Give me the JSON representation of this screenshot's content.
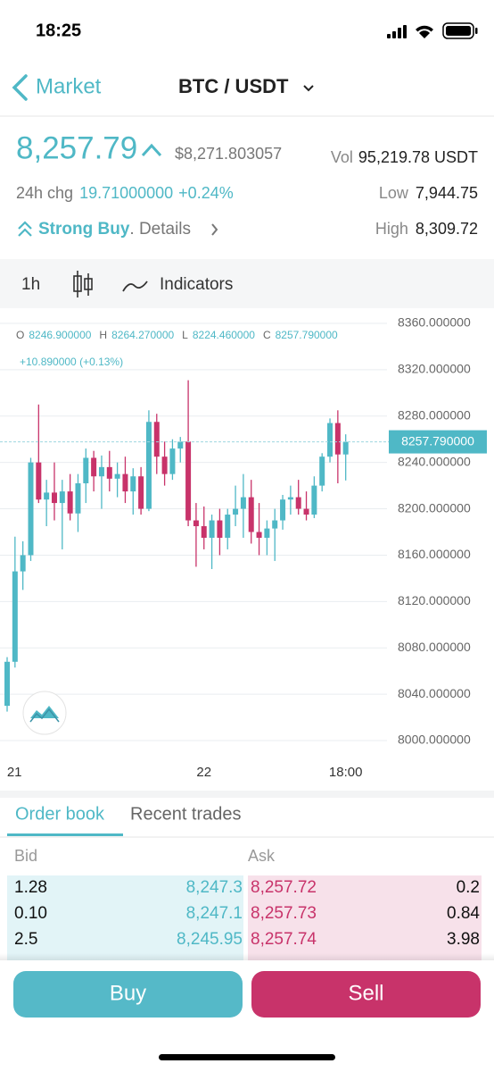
{
  "status_bar": {
    "time": "18:25"
  },
  "header": {
    "back": "Market",
    "pair": "BTC / USDT"
  },
  "ticker": {
    "price": "8,257.79",
    "fiat_price": "$8,271.803057",
    "vol_label": "Vol",
    "vol": "95,219.78 USDT",
    "chg_label": "24h chg",
    "chg": "19.71000000",
    "chg_pct": "+0.24%",
    "low_label": "Low",
    "low": "7,944.75",
    "high_label": "High",
    "high": "8,309.72",
    "signal": "Strong Buy",
    "details": ". Details"
  },
  "toolbar": {
    "interval": "1h",
    "indicators": "Indicators"
  },
  "chart_data": {
    "type": "candlestick",
    "ohlc_info": {
      "o_label": "O",
      "o": "8246.900000",
      "h_label": "H",
      "h": "8264.270000",
      "l_label": "L",
      "l": "8224.460000",
      "c_label": "C",
      "c": "8257.790000"
    },
    "change_info": "+10.890000 (+0.13%)",
    "categories": [
      null,
      "21",
      null,
      null,
      null,
      null,
      null,
      null,
      null,
      null,
      null,
      null,
      null,
      null,
      null,
      null,
      null,
      null,
      null,
      null,
      null,
      null,
      null,
      null,
      null,
      "22",
      null,
      null,
      null,
      null,
      null,
      null,
      null,
      null,
      null,
      null,
      null,
      null,
      null,
      null,
      null,
      null,
      null,
      "18:00"
    ],
    "open": [
      8030,
      8068,
      8146,
      8160,
      8240,
      8208,
      8214,
      8205,
      8215,
      8196,
      8222,
      8244,
      8228,
      8236,
      8226,
      8230,
      8215,
      8228,
      8200,
      8275,
      8245,
      8230,
      8252,
      8258,
      8190,
      8185,
      8175,
      8190,
      8175,
      8195,
      8200,
      8210,
      8180,
      8175,
      8183,
      8190,
      8208,
      8210,
      8200,
      8195,
      8220,
      8245,
      8274,
      8246.9
    ],
    "high": [
      8072,
      8176,
      8172,
      8244,
      8290,
      8225,
      8240,
      8225,
      8230,
      8230,
      8252,
      8250,
      8246,
      8250,
      8240,
      8245,
      8235,
      8236,
      8285,
      8282,
      8258,
      8260,
      8262,
      8311,
      8205,
      8202,
      8195,
      8200,
      8200,
      8220,
      8230,
      8225,
      8205,
      8190,
      8200,
      8212,
      8220,
      8225,
      8215,
      8228,
      8248,
      8278,
      8285,
      8264.27
    ],
    "low": [
      8025,
      8063,
      8130,
      8155,
      8205,
      8185,
      8190,
      8165,
      8190,
      8180,
      8205,
      8215,
      8200,
      8215,
      8210,
      8205,
      8195,
      8195,
      8198,
      8230,
      8220,
      8225,
      8240,
      8185,
      8150,
      8165,
      8148,
      8160,
      8165,
      8185,
      8175,
      8170,
      8160,
      8160,
      8155,
      8182,
      8195,
      8195,
      8190,
      8192,
      8215,
      8240,
      8222,
      8224.46
    ],
    "close": [
      8068,
      8146,
      8160,
      8240,
      8208,
      8214,
      8205,
      8215,
      8196,
      8222,
      8244,
      8228,
      8236,
      8226,
      8230,
      8215,
      8228,
      8200,
      8275,
      8245,
      8230,
      8252,
      8258,
      8190,
      8185,
      8175,
      8190,
      8175,
      8195,
      8200,
      8210,
      8180,
      8175,
      8183,
      8190,
      8208,
      8210,
      8200,
      8195,
      8220,
      8245,
      8274,
      8246.9,
      8257.79
    ],
    "up_color": "#4fb8c6",
    "down_color": "#c8336a",
    "ylim": [
      8000,
      8360
    ],
    "yticks": [
      {
        "value": 8000,
        "label": "8000.000000"
      },
      {
        "value": 8040,
        "label": "8040.000000"
      },
      {
        "value": 8080,
        "label": "8080.000000"
      },
      {
        "value": 8120,
        "label": "8120.000000"
      },
      {
        "value": 8160,
        "label": "8160.000000"
      },
      {
        "value": 8200,
        "label": "8200.000000"
      },
      {
        "value": 8240,
        "label": "8240.000000"
      },
      {
        "value": 8280,
        "label": "8280.000000"
      },
      {
        "value": 8320,
        "label": "8320.000000"
      },
      {
        "value": 8360,
        "label": "8360.000000"
      }
    ],
    "grid": true,
    "last_price": {
      "value": 8257.79,
      "label": "8257.790000"
    }
  },
  "order_book": {
    "tabs": [
      "Order book",
      "Recent trades"
    ],
    "bid_label": "Bid",
    "ask_label": "Ask",
    "rows": [
      [
        "1.28",
        "8,247.3",
        "8,257.72",
        "0.2"
      ],
      [
        "0.10",
        "8,247.1",
        "8,257.73",
        "0.84"
      ],
      [
        "2.5",
        "8,245.95",
        "8,257.74",
        "3.98"
      ]
    ]
  },
  "actions": {
    "buy": "Buy",
    "sell": "Sell"
  }
}
